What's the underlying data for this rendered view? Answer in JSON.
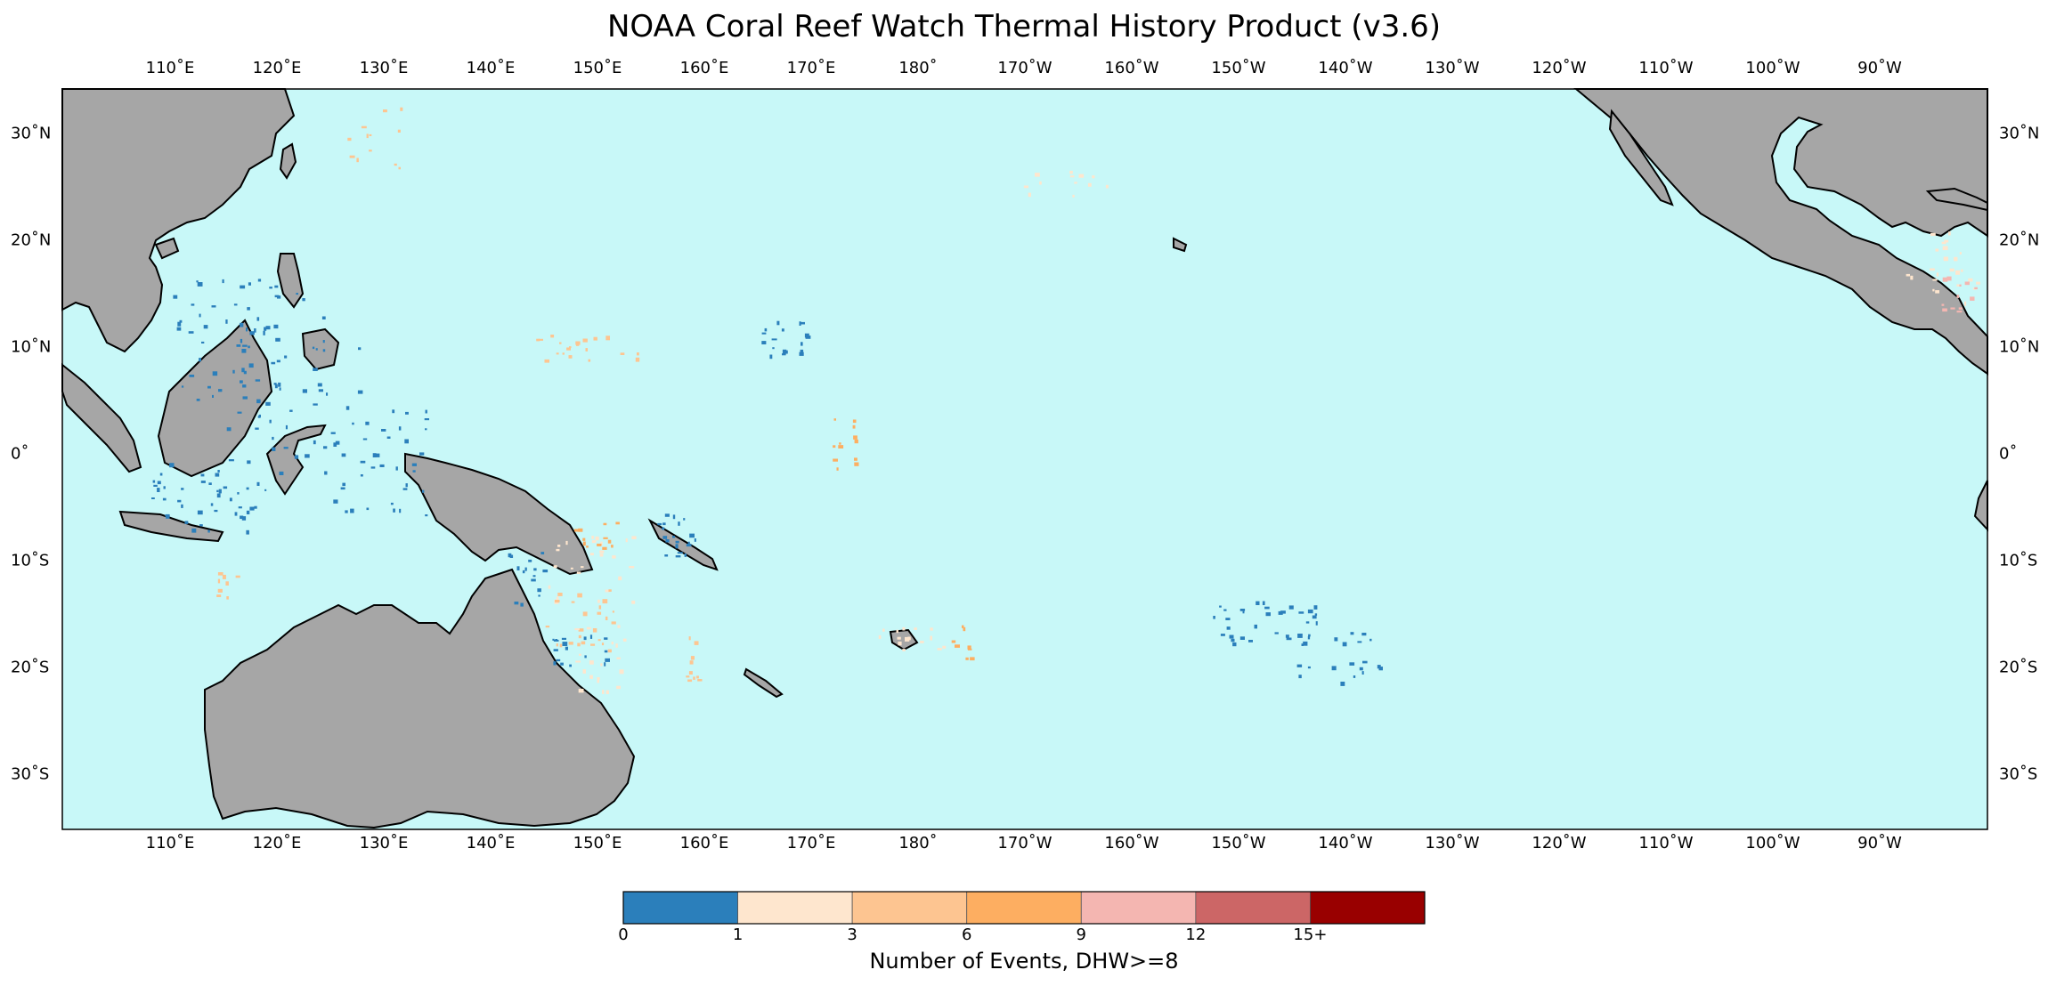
{
  "title": "NOAA Coral Reef Watch Thermal History Product (v3.6)",
  "lon_ticks": [
    "110˚E",
    "120˚E",
    "130˚E",
    "140˚E",
    "150˚E",
    "160˚E",
    "170˚E",
    "180˚",
    "170˚W",
    "160˚W",
    "150˚W",
    "140˚W",
    "130˚W",
    "120˚W",
    "110˚W",
    "100˚W",
    "90˚W"
  ],
  "lat_ticks": [
    "30˚N",
    "20˚N",
    "10˚N",
    "0˚",
    "10˚S",
    "20˚S",
    "30˚S"
  ],
  "colorbar": {
    "title": "Number of Events, DHW>=8",
    "labels": [
      "0",
      "1",
      "3",
      "6",
      "9",
      "12",
      "15+"
    ],
    "colors": [
      "#2b7fbb",
      "#fee6ce",
      "#fdc591",
      "#fdae61",
      "#f4b6b1",
      "#cc6666",
      "#990000"
    ]
  },
  "colors": {
    "ocean": "#c8f8f8",
    "land": "#a6a6a6",
    "coast": "#000000"
  }
}
